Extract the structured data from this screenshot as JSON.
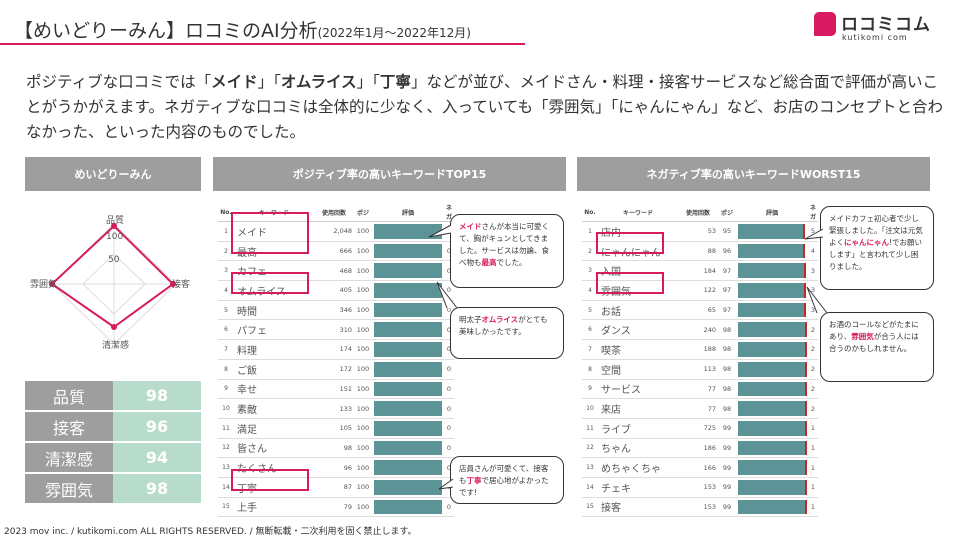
{
  "title": "【めいどりーみん】ロコミのAI分析",
  "period": "(2022年1月〜2022年12月)",
  "logo": {
    "main": "ロコミコム",
    "sub": "kutikomi com"
  },
  "intro": {
    "part1": "ポジティブな口コミでは「",
    "kw1": "メイド",
    "part2": "」「",
    "kw2": "オムライス",
    "part3": "」「",
    "kw3": "丁寧",
    "part4": "」などが並び、メイドさん・料理・接客サービスなど総合面で評価が高いことがうかがえます。ネガティブな口コミは全体的に少なく、入っていても「雰囲気」「にゃんにゃん」など、お店のコンセプトと合わなかった、といった内容のものでした。"
  },
  "panels": {
    "store": "めいどりーみん",
    "positive": "ポジティブ率の高いキーワードTOP15",
    "negative": "ネガティブ率の高いキーワードWORST15"
  },
  "radar": {
    "axes": [
      "品質",
      "接客",
      "清潔感",
      "雰囲気"
    ],
    "scale": [
      "100",
      "50"
    ]
  },
  "scores": [
    {
      "label": "品質",
      "value": "98"
    },
    {
      "label": "接客",
      "value": "96"
    },
    {
      "label": "清潔感",
      "value": "94"
    },
    {
      "label": "雰囲気",
      "value": "98"
    }
  ],
  "columns": {
    "no": "No.",
    "keyword": "キーワード",
    "count": "使用回数",
    "pos": "ポジ",
    "eval": "評価",
    "neg": "ネガ"
  },
  "positive_rows": [
    {
      "no": "1",
      "word": "メイド",
      "count": "2,048",
      "pct": "100",
      "neg": "0"
    },
    {
      "no": "2",
      "word": "最高",
      "count": "666",
      "pct": "100",
      "neg": "0"
    },
    {
      "no": "3",
      "word": "カフェ",
      "count": "468",
      "pct": "100",
      "neg": "0"
    },
    {
      "no": "4",
      "word": "オムライス",
      "count": "405",
      "pct": "100",
      "neg": "0"
    },
    {
      "no": "5",
      "word": "時間",
      "count": "346",
      "pct": "100",
      "neg": "0"
    },
    {
      "no": "6",
      "word": "パフェ",
      "count": "310",
      "pct": "100",
      "neg": "0"
    },
    {
      "no": "7",
      "word": "料理",
      "count": "174",
      "pct": "100",
      "neg": "0"
    },
    {
      "no": "8",
      "word": "ご飯",
      "count": "172",
      "pct": "100",
      "neg": "0"
    },
    {
      "no": "9",
      "word": "幸せ",
      "count": "151",
      "pct": "100",
      "neg": "0"
    },
    {
      "no": "10",
      "word": "素敵",
      "count": "133",
      "pct": "100",
      "neg": "0"
    },
    {
      "no": "11",
      "word": "満足",
      "count": "105",
      "pct": "100",
      "neg": "0"
    },
    {
      "no": "12",
      "word": "皆さん",
      "count": "98",
      "pct": "100",
      "neg": "0"
    },
    {
      "no": "13",
      "word": "たくさん",
      "count": "96",
      "pct": "100",
      "neg": "0"
    },
    {
      "no": "14",
      "word": "丁寧",
      "count": "87",
      "pct": "100",
      "neg": "0"
    },
    {
      "no": "15",
      "word": "上手",
      "count": "79",
      "pct": "100",
      "neg": "0"
    }
  ],
  "negative_rows": [
    {
      "no": "1",
      "word": "店内",
      "count": "53",
      "pct": "95",
      "neg": "5"
    },
    {
      "no": "2",
      "word": "にゃんにゃん",
      "count": "88",
      "pct": "96",
      "neg": "4"
    },
    {
      "no": "3",
      "word": "入国",
      "count": "184",
      "pct": "97",
      "neg": "3"
    },
    {
      "no": "4",
      "word": "雰囲気",
      "count": "122",
      "pct": "97",
      "neg": "3"
    },
    {
      "no": "5",
      "word": "お話",
      "count": "65",
      "pct": "97",
      "neg": "3"
    },
    {
      "no": "6",
      "word": "ダンス",
      "count": "240",
      "pct": "98",
      "neg": "2"
    },
    {
      "no": "7",
      "word": "喫茶",
      "count": "188",
      "pct": "98",
      "neg": "2"
    },
    {
      "no": "8",
      "word": "空間",
      "count": "113",
      "pct": "98",
      "neg": "2"
    },
    {
      "no": "9",
      "word": "サービス",
      "count": "77",
      "pct": "98",
      "neg": "2"
    },
    {
      "no": "10",
      "word": "来店",
      "count": "77",
      "pct": "98",
      "neg": "2"
    },
    {
      "no": "11",
      "word": "ライブ",
      "count": "725",
      "pct": "99",
      "neg": "1"
    },
    {
      "no": "12",
      "word": "ちゃん",
      "count": "186",
      "pct": "99",
      "neg": "1"
    },
    {
      "no": "13",
      "word": "めちゃくちゃ",
      "count": "166",
      "pct": "99",
      "neg": "1"
    },
    {
      "no": "14",
      "word": "チェキ",
      "count": "153",
      "pct": "99",
      "neg": "1"
    },
    {
      "no": "15",
      "word": "接客",
      "count": "153",
      "pct": "99",
      "neg": "1"
    }
  ],
  "bubbles": {
    "p1": {
      "kw": "メイド",
      "a": "さんが本当に可愛くて、胸がキュンとしてきました。サービスは勿論、食べ物も",
      "kw2": "最高",
      "b": "でした。"
    },
    "p2": {
      "a": "明太子",
      "kw": "オムライス",
      "b": "がとても美味しかったです。"
    },
    "p3": {
      "a": "店員さんが可愛くて、接客も",
      "kw": "丁寧",
      "b": "で居心地がよかったです!"
    },
    "n1": {
      "a": "メイドカフェ初心者で少し緊張しました。「注文は元気よく",
      "kw": "にゃんにゃん",
      "b": "!でお願いします」と言われて少し困りました。"
    },
    "n2": {
      "a": "お酒のコールなどがたまにあり、",
      "kw": "雰囲気",
      "b": "が合う人には合うのかもしれません。"
    }
  },
  "footer": "2023 mov inc. / kutikomi.com ALL RIGHTS RESERVED. / 無断転載・二次利用を固く禁止します。",
  "colors": {
    "accent": "#d81b60",
    "header_gray": "#9e9e9e",
    "bar": "#5c9396",
    "score_bg": "#b8dccb",
    "neg_mark": "#c62828"
  }
}
